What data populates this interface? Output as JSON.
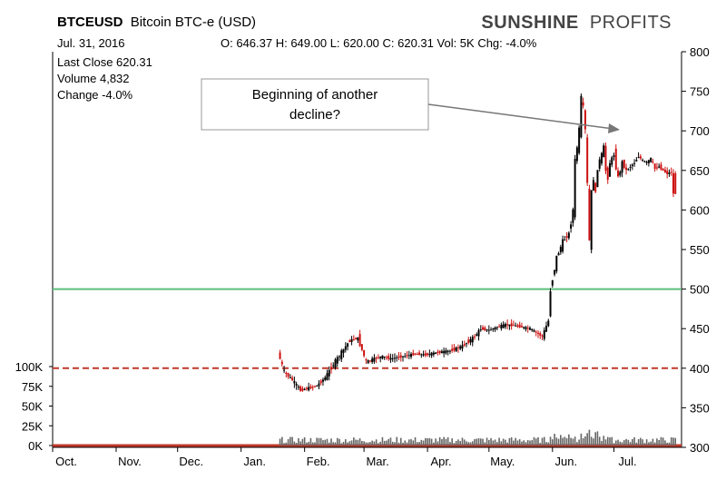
{
  "header": {
    "symbol": "BTCEUSD",
    "name": "Bitcoin BTC-e (USD)",
    "brand_bold": "SUNSHINE",
    "brand_light": "PROFITS",
    "date": "Jul. 31, 2016",
    "ohlc_line": "O: 646.37 H: 649.00 L: 620.00 C: 620.31 Vol: 5K Chg: -4.0%"
  },
  "stats": {
    "last_close": "Last Close 620.31",
    "volume": "Volume 4,832",
    "change": "Change -4.0%"
  },
  "annotation": {
    "line1": "Beginning of another",
    "line2": "decline?"
  },
  "colors": {
    "up_candle": "#000000",
    "down_candle": "#cc1111",
    "support_line": "#5cbf7a",
    "dashed_line": "#c0392b",
    "volume_bar": "#666666",
    "volume_baseline": "#c0392b"
  },
  "chart_data": {
    "type": "candlestick",
    "x_tick_labels": [
      "Oct.",
      "Nov.",
      "Dec.",
      "Jan.",
      "Feb.",
      "Mar.",
      "Apr.",
      "May.",
      "Jun.",
      "Jul."
    ],
    "y_ticks": [
      300,
      350,
      400,
      450,
      500,
      550,
      600,
      650,
      700,
      750,
      800
    ],
    "ylim": [
      300,
      800
    ],
    "volume_ticks": [
      "0K",
      "25K",
      "50K",
      "75K",
      "100K"
    ],
    "volume_tick_values": [
      0,
      25,
      50,
      75,
      100
    ],
    "volume_ylim": [
      0,
      100
    ],
    "horizontal_lines": [
      {
        "value": 500,
        "style": "solid",
        "color_key": "support_line"
      },
      {
        "value": 400,
        "style": "dashed",
        "color_key": "dashed_line"
      }
    ],
    "price_path": [
      {
        "date": "2016-01-20",
        "close": 420
      },
      {
        "date": "2016-01-23",
        "close": 395
      },
      {
        "date": "2016-01-27",
        "close": 385
      },
      {
        "date": "2016-01-31",
        "close": 372
      },
      {
        "date": "2016-02-04",
        "close": 375
      },
      {
        "date": "2016-02-08",
        "close": 378
      },
      {
        "date": "2016-02-12",
        "close": 388
      },
      {
        "date": "2016-02-16",
        "close": 405
      },
      {
        "date": "2016-02-20",
        "close": 420
      },
      {
        "date": "2016-02-24",
        "close": 435
      },
      {
        "date": "2016-02-28",
        "close": 438
      },
      {
        "date": "2016-03-03",
        "close": 408
      },
      {
        "date": "2016-03-07",
        "close": 412
      },
      {
        "date": "2016-03-11",
        "close": 415
      },
      {
        "date": "2016-03-15",
        "close": 412
      },
      {
        "date": "2016-03-19",
        "close": 414
      },
      {
        "date": "2016-03-23",
        "close": 416
      },
      {
        "date": "2016-03-27",
        "close": 418
      },
      {
        "date": "2016-04-01",
        "close": 417
      },
      {
        "date": "2016-04-07",
        "close": 420
      },
      {
        "date": "2016-04-13",
        "close": 422
      },
      {
        "date": "2016-04-19",
        "close": 428
      },
      {
        "date": "2016-04-25",
        "close": 440
      },
      {
        "date": "2016-04-28",
        "close": 450
      },
      {
        "date": "2016-05-02",
        "close": 448
      },
      {
        "date": "2016-05-06",
        "close": 452
      },
      {
        "date": "2016-05-10",
        "close": 455
      },
      {
        "date": "2016-05-14",
        "close": 454
      },
      {
        "date": "2016-05-18",
        "close": 452
      },
      {
        "date": "2016-05-22",
        "close": 450
      },
      {
        "date": "2016-05-25",
        "close": 445
      },
      {
        "date": "2016-05-28",
        "close": 440
      },
      {
        "date": "2016-05-31",
        "close": 460
      },
      {
        "date": "2016-06-01",
        "close": 500
      },
      {
        "date": "2016-06-04",
        "close": 540
      },
      {
        "date": "2016-06-07",
        "close": 560
      },
      {
        "date": "2016-06-10",
        "close": 570
      },
      {
        "date": "2016-06-12",
        "close": 600
      },
      {
        "date": "2016-06-13",
        "close": 660
      },
      {
        "date": "2016-06-15",
        "close": 700
      },
      {
        "date": "2016-06-16",
        "close": 740
      },
      {
        "date": "2016-06-17",
        "close": 730
      },
      {
        "date": "2016-06-18",
        "close": 700
      },
      {
        "date": "2016-06-19",
        "close": 630
      },
      {
        "date": "2016-06-20",
        "close": 560
      },
      {
        "date": "2016-06-21",
        "close": 620
      },
      {
        "date": "2016-06-22",
        "close": 640
      },
      {
        "date": "2016-06-23",
        "close": 620
      },
      {
        "date": "2016-06-24",
        "close": 655
      },
      {
        "date": "2016-06-26",
        "close": 670
      },
      {
        "date": "2016-06-27",
        "close": 680
      },
      {
        "date": "2016-06-28",
        "close": 650
      },
      {
        "date": "2016-06-29",
        "close": 640
      },
      {
        "date": "2016-06-30",
        "close": 660
      },
      {
        "date": "2016-07-02",
        "close": 670
      },
      {
        "date": "2016-07-04",
        "close": 640
      },
      {
        "date": "2016-07-06",
        "close": 660
      },
      {
        "date": "2016-07-08",
        "close": 650
      },
      {
        "date": "2016-07-10",
        "close": 655
      },
      {
        "date": "2016-07-12",
        "close": 660
      },
      {
        "date": "2016-07-14",
        "close": 668
      },
      {
        "date": "2016-07-16",
        "close": 662
      },
      {
        "date": "2016-07-18",
        "close": 660
      },
      {
        "date": "2016-07-20",
        "close": 665
      },
      {
        "date": "2016-07-22",
        "close": 652
      },
      {
        "date": "2016-07-24",
        "close": 655
      },
      {
        "date": "2016-07-26",
        "close": 650
      },
      {
        "date": "2016-07-28",
        "close": 646
      },
      {
        "date": "2016-07-30",
        "close": 648
      },
      {
        "date": "2016-07-31",
        "close": 620
      }
    ],
    "last_candle": {
      "date": "2016-07-31",
      "open": 646.37,
      "high": 649.0,
      "low": 620.0,
      "close": 620.31
    }
  }
}
